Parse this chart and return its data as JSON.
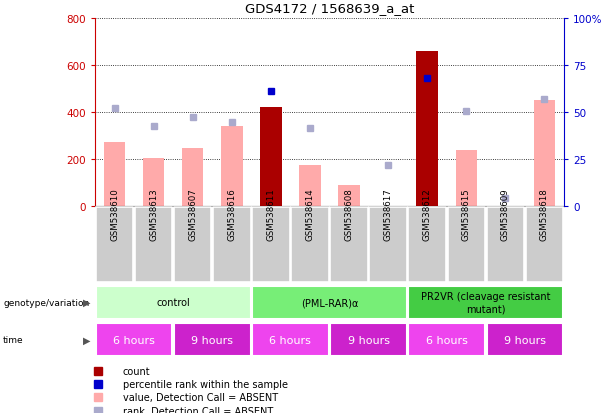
{
  "title": "GDS4172 / 1568639_a_at",
  "samples": [
    "GSM538610",
    "GSM538613",
    "GSM538607",
    "GSM538616",
    "GSM538611",
    "GSM538614",
    "GSM538608",
    "GSM538617",
    "GSM538612",
    "GSM538615",
    "GSM538609",
    "GSM538618"
  ],
  "bar_values": [
    null,
    null,
    null,
    null,
    420,
    null,
    null,
    null,
    660,
    null,
    null,
    null
  ],
  "bar_absent_values": [
    270,
    205,
    248,
    338,
    null,
    175,
    90,
    null,
    null,
    238,
    null,
    450
  ],
  "rank_dots_dark": [
    null,
    null,
    null,
    null,
    490,
    null,
    null,
    null,
    545,
    null,
    null,
    null
  ],
  "rank_dots_absent": [
    415,
    340,
    380,
    355,
    null,
    330,
    null,
    175,
    null,
    404,
    35,
    455
  ],
  "ylim_left": [
    0,
    800
  ],
  "ylim_right": [
    0,
    100
  ],
  "yticks_left": [
    0,
    200,
    400,
    600,
    800
  ],
  "yticks_right": [
    0,
    25,
    50,
    75,
    100
  ],
  "ytick_labels_right": [
    "0",
    "25",
    "50",
    "75",
    "100%"
  ],
  "bar_color_dark": "#aa0000",
  "bar_color_absent": "#ffaaaa",
  "dot_color_dark": "#0000cc",
  "dot_color_absent": "#aaaacc",
  "grid_color": "#000000",
  "groups": [
    {
      "label": "control",
      "start": 0,
      "end": 4,
      "color": "#ccffcc"
    },
    {
      "label": "(PML-RAR)α",
      "start": 4,
      "end": 8,
      "color": "#77ee77"
    },
    {
      "label": "PR2VR (cleavage resistant\nmutant)",
      "start": 8,
      "end": 12,
      "color": "#44cc44"
    }
  ],
  "time_groups": [
    {
      "label": "6 hours",
      "start": 0,
      "end": 2,
      "color": "#ee44ee"
    },
    {
      "label": "9 hours",
      "start": 2,
      "end": 4,
      "color": "#cc22cc"
    },
    {
      "label": "6 hours",
      "start": 4,
      "end": 6,
      "color": "#ee44ee"
    },
    {
      "label": "9 hours",
      "start": 6,
      "end": 8,
      "color": "#cc22cc"
    },
    {
      "label": "6 hours",
      "start": 8,
      "end": 10,
      "color": "#ee44ee"
    },
    {
      "label": "9 hours",
      "start": 10,
      "end": 12,
      "color": "#cc22cc"
    }
  ],
  "legend_items": [
    {
      "label": "count",
      "color": "#aa0000"
    },
    {
      "label": "percentile rank within the sample",
      "color": "#0000cc"
    },
    {
      "label": "value, Detection Call = ABSENT",
      "color": "#ffaaaa"
    },
    {
      "label": "rank, Detection Call = ABSENT",
      "color": "#aaaacc"
    }
  ],
  "red_color": "#cc0000",
  "blue_color": "#0000cc",
  "sample_bg_color": "#cccccc"
}
